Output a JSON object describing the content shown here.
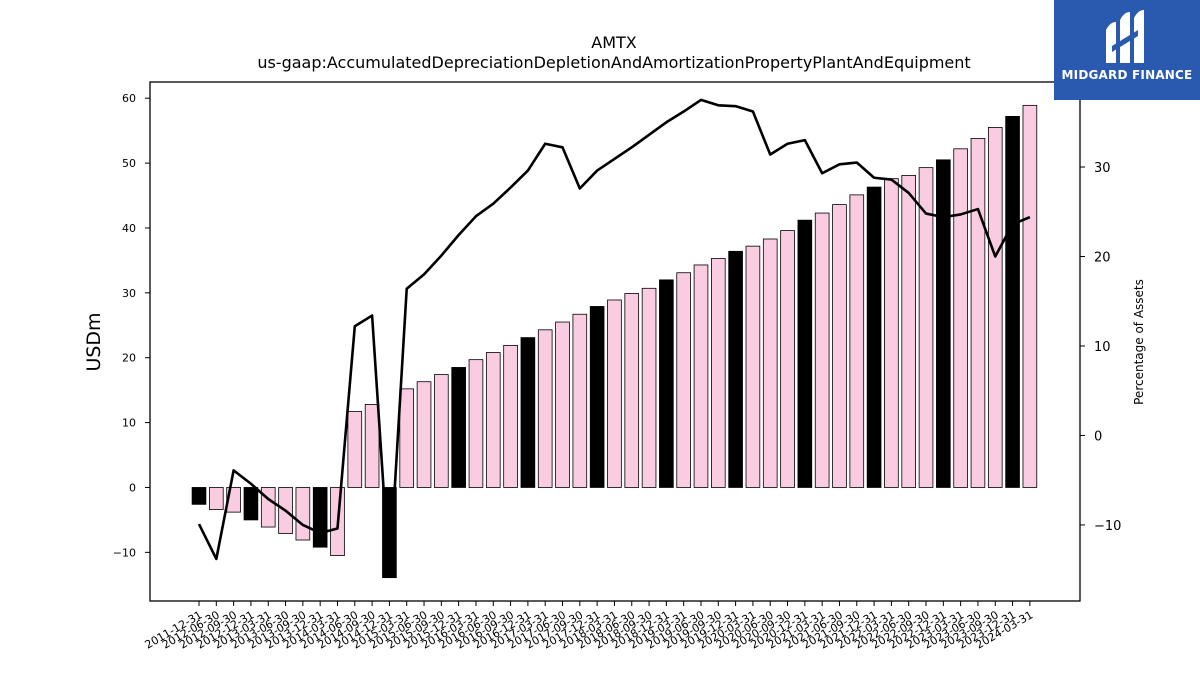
{
  "chart_data": {
    "type": "bar",
    "title": "AMTX",
    "subtitle": "us-gaap:AccumulatedDepreciationDepletionAndAmortizationPropertyPlantAndEquipment",
    "ylabel": "USDm",
    "y2label": "Percentage of Assets",
    "ylim": [
      -17.5,
      62.5
    ],
    "y2lim": [
      -18.5,
      39.5
    ],
    "yticks": [
      -10,
      0,
      10,
      20,
      30,
      40,
      50,
      60
    ],
    "y2ticks": [
      -10,
      0,
      10,
      20,
      30
    ],
    "grid": false,
    "colors": {
      "bar_q4": "#000000",
      "bar_other": "#f9cce2",
      "bar_edge": "#000000",
      "line": "#000000"
    },
    "categories": [
      "2011-12-31",
      "2012-06-30",
      "2012-09-30",
      "2012-12-31",
      "2013-03-31",
      "2013-06-30",
      "2013-09-30",
      "2013-12-31",
      "2014-03-31",
      "2014-06-30",
      "2014-09-30",
      "2014-12-31",
      "2015-03-31",
      "2015-06-30",
      "2015-09-30",
      "2015-12-31",
      "2016-03-31",
      "2016-06-30",
      "2016-09-30",
      "2016-12-31",
      "2017-03-31",
      "2017-06-30",
      "2017-09-30",
      "2017-12-31",
      "2018-03-31",
      "2018-06-30",
      "2018-09-30",
      "2018-12-31",
      "2019-03-31",
      "2019-06-30",
      "2019-09-30",
      "2019-12-31",
      "2020-03-31",
      "2020-06-30",
      "2020-09-30",
      "2020-12-31",
      "2021-03-31",
      "2021-06-30",
      "2021-09-30",
      "2021-12-31",
      "2022-03-31",
      "2022-06-30",
      "2022-09-30",
      "2022-12-31",
      "2023-03-31",
      "2023-06-30",
      "2023-09-30",
      "2023-12-31",
      "2024-03-31"
    ],
    "series": [
      {
        "kind": "bar",
        "values": [
          -2.6,
          -3.4,
          -3.8,
          -5.0,
          -6.1,
          -7.1,
          -8.1,
          -9.2,
          -10.5,
          11.7,
          12.8,
          -13.9,
          15.2,
          16.3,
          17.4,
          18.5,
          19.7,
          20.8,
          21.9,
          23.1,
          24.3,
          25.5,
          26.7,
          27.9,
          28.9,
          29.9,
          30.7,
          32.0,
          33.1,
          34.3,
          35.3,
          36.4,
          37.2,
          38.3,
          39.6,
          41.2,
          42.3,
          43.6,
          45.1,
          46.3,
          47.6,
          48.1,
          49.3,
          50.5,
          52.2,
          53.8,
          55.5,
          57.2,
          58.9
        ]
      },
      {
        "kind": "line",
        "axis": "right",
        "values": [
          -9.9,
          -13.8,
          -3.9,
          -5.4,
          -7.1,
          -8.4,
          -10.0,
          -10.9,
          -10.4,
          12.2,
          13.4,
          -15.8,
          16.4,
          18.0,
          20.1,
          22.4,
          24.5,
          25.9,
          27.7,
          29.6,
          32.6,
          32.2,
          27.6,
          29.6,
          30.9,
          32.2,
          33.6,
          35.0,
          36.2,
          37.5,
          36.9,
          36.8,
          36.2,
          31.4,
          32.6,
          33.0,
          29.3,
          30.3,
          30.5,
          28.8,
          28.6,
          27.1,
          24.8,
          24.4,
          24.7,
          25.3,
          20.0,
          23.6,
          24.4
        ]
      }
    ]
  },
  "logo": {
    "text": "MIDGARD FINANCE",
    "mark": "midgard-logo-mark-icon"
  }
}
